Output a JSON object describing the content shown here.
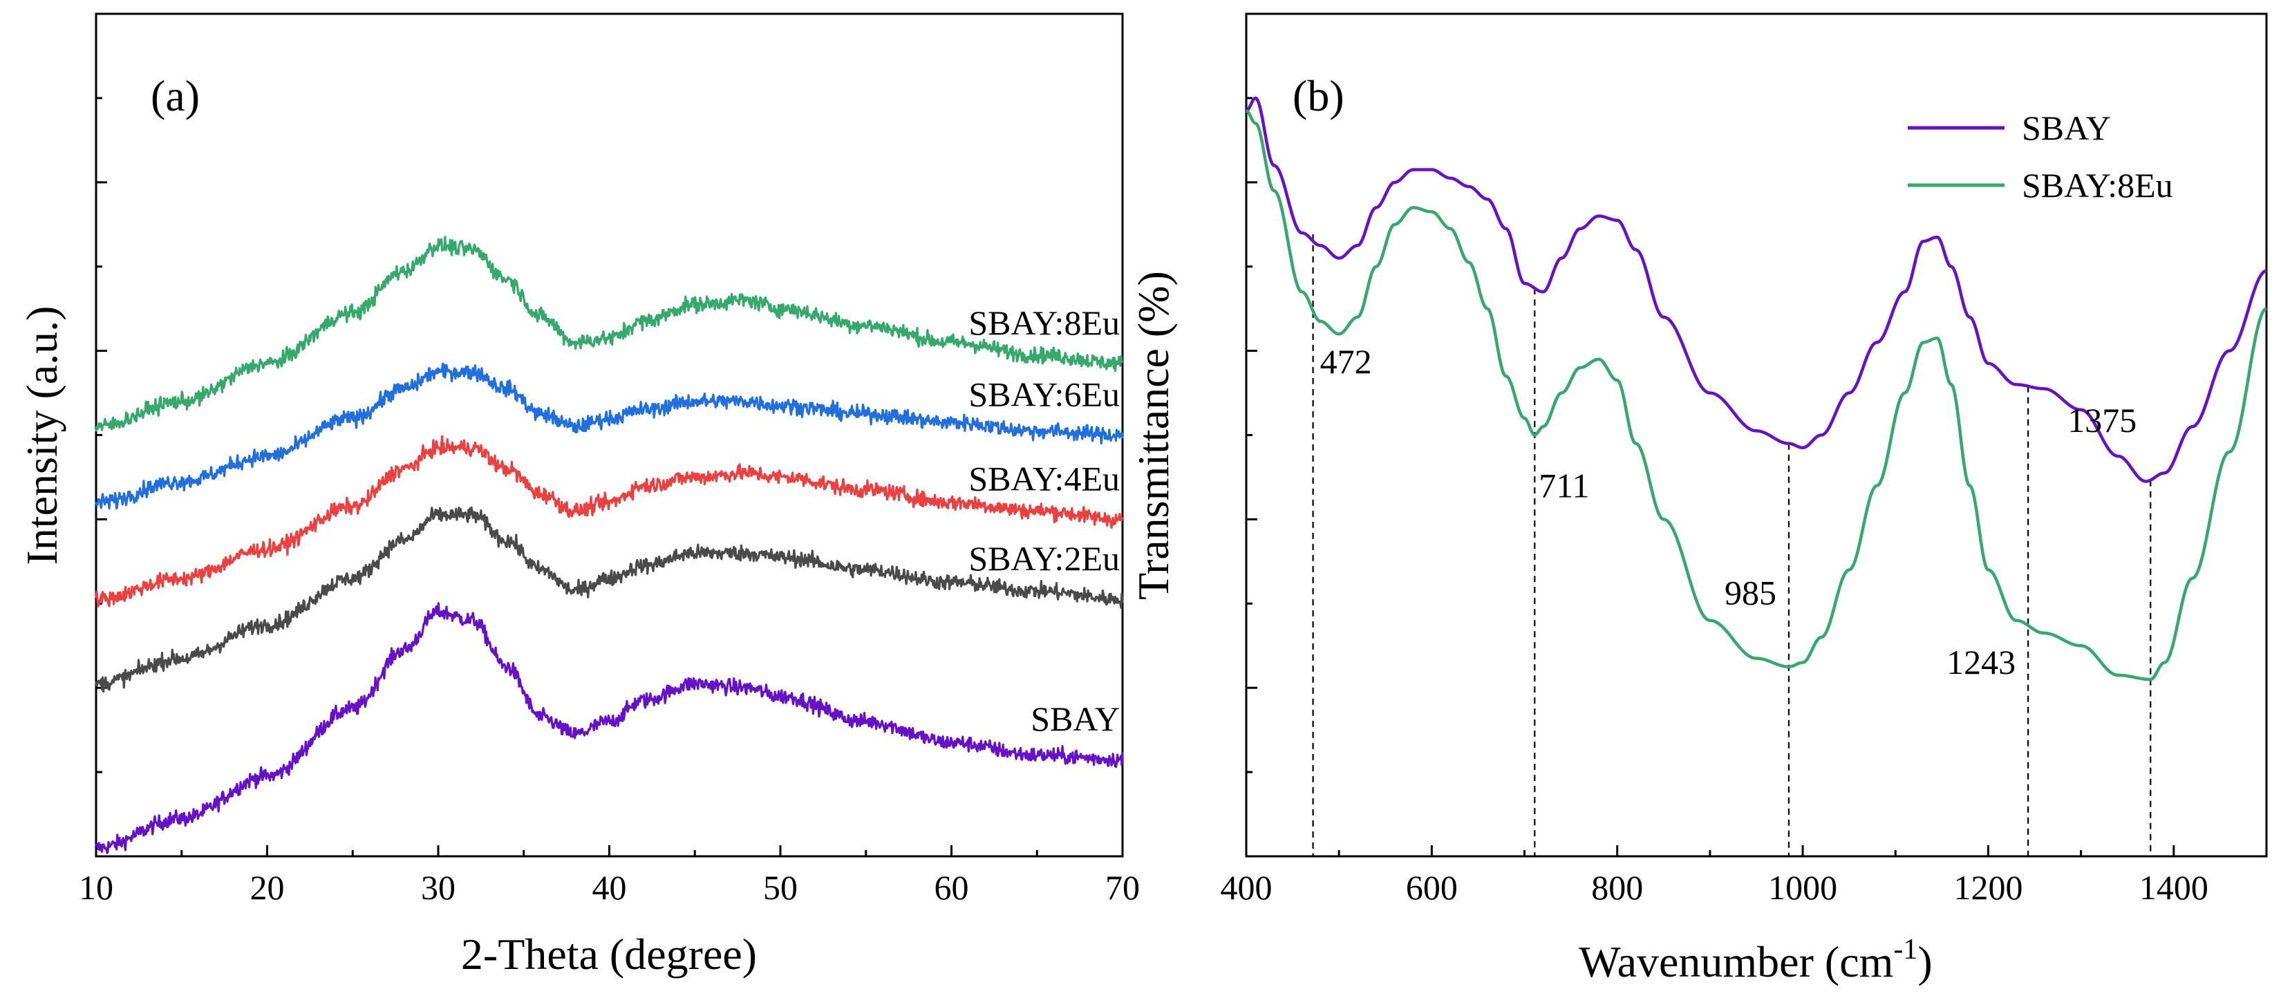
{
  "chart_data": [
    {
      "panel": "(a)",
      "type": "line",
      "title": "",
      "xlabel": "2-Theta (degree)",
      "ylabel": "Intensity (a.u.)",
      "xlim": [
        10,
        70
      ],
      "ylim": [
        0,
        10
      ],
      "x_ticks": [
        10,
        20,
        30,
        40,
        50,
        60,
        70
      ],
      "y_tick_labels_shown": false,
      "x_tick_labels": [
        "10",
        "20",
        "30",
        "40",
        "50",
        "60",
        "70"
      ],
      "grid": false,
      "colors": {
        "SBAY": "#6610cc",
        "SBAY:2Eu": "#4a4a4a",
        "SBAY:4Eu": "#ef3e3e",
        "SBAY:6Eu": "#1f6fe0",
        "SBAY:8Eu": "#33a96a"
      },
      "series": [
        {
          "name": "SBAY",
          "label": "SBAY",
          "x": [
            10,
            15,
            20,
            25,
            28,
            30,
            32,
            34,
            36,
            38,
            40,
            42,
            45,
            48,
            50,
            55,
            60,
            65,
            70
          ],
          "values": [
            0.1,
            0.45,
            0.95,
            1.75,
            2.45,
            2.9,
            2.8,
            2.25,
            1.65,
            1.45,
            1.6,
            1.85,
            2.05,
            2.0,
            1.9,
            1.6,
            1.35,
            1.2,
            1.15
          ]
        },
        {
          "name": "SBAY:2Eu",
          "label": "SBAY:2Eu",
          "x": [
            10,
            15,
            20,
            25,
            28,
            30,
            32,
            34,
            36,
            38,
            40,
            42,
            45,
            48,
            50,
            55,
            60,
            65,
            70
          ],
          "values": [
            2.05,
            2.35,
            2.75,
            3.3,
            3.75,
            4.05,
            4.05,
            3.75,
            3.4,
            3.15,
            3.3,
            3.45,
            3.6,
            3.6,
            3.55,
            3.4,
            3.25,
            3.15,
            3.05
          ]
        },
        {
          "name": "SBAY:4Eu",
          "label": "SBAY:4Eu",
          "x": [
            10,
            15,
            20,
            25,
            28,
            30,
            32,
            34,
            36,
            38,
            40,
            42,
            45,
            48,
            50,
            55,
            60,
            65,
            70
          ],
          "values": [
            3.05,
            3.3,
            3.65,
            4.15,
            4.6,
            4.85,
            4.85,
            4.6,
            4.3,
            4.1,
            4.2,
            4.4,
            4.5,
            4.55,
            4.5,
            4.35,
            4.2,
            4.1,
            4.0
          ]
        },
        {
          "name": "SBAY:6Eu",
          "label": "SBAY:6Eu",
          "x": [
            10,
            15,
            20,
            25,
            28,
            30,
            32,
            34,
            36,
            38,
            40,
            42,
            45,
            48,
            50,
            55,
            60,
            65,
            70
          ],
          "values": [
            4.2,
            4.45,
            4.75,
            5.2,
            5.55,
            5.75,
            5.75,
            5.55,
            5.25,
            5.1,
            5.2,
            5.3,
            5.4,
            5.4,
            5.35,
            5.25,
            5.15,
            5.05,
            5.0
          ]
        },
        {
          "name": "SBAY:8Eu",
          "label": "SBAY:8Eu",
          "x": [
            10,
            15,
            20,
            25,
            28,
            30,
            32,
            34,
            36,
            38,
            40,
            42,
            45,
            48,
            50,
            55,
            60,
            65,
            70
          ],
          "values": [
            5.1,
            5.4,
            5.85,
            6.45,
            6.95,
            7.25,
            7.2,
            6.85,
            6.4,
            6.1,
            6.15,
            6.35,
            6.55,
            6.6,
            6.5,
            6.3,
            6.1,
            5.95,
            5.85
          ]
        }
      ]
    },
    {
      "panel": "(b)",
      "type": "line",
      "title": "",
      "xlabel": "Wavenumber (cm",
      "xlabel_superscript": "-1",
      "xlabel_suffix": ")",
      "ylabel": "Transmittance (%)",
      "xlim": [
        400,
        1500
      ],
      "ylim": [
        0,
        100
      ],
      "x_ticks": [
        400,
        600,
        800,
        1000,
        1200,
        1400
      ],
      "x_tick_labels": [
        "400",
        "600",
        "800",
        "1000",
        "1200",
        "1400"
      ],
      "y_tick_labels_shown": false,
      "grid": false,
      "legend": {
        "position": "top-right",
        "entries": [
          "SBAY",
          "SBAY:8Eu"
        ]
      },
      "colors": {
        "SBAY": "#6610cc",
        "SBAY:8Eu": "#33a96a"
      },
      "series": [
        {
          "name": "SBAY",
          "x": [
            400,
            410,
            430,
            460,
            480,
            500,
            520,
            540,
            560,
            580,
            600,
            620,
            640,
            660,
            680,
            700,
            720,
            740,
            760,
            780,
            800,
            820,
            850,
            900,
            950,
            985,
            1000,
            1020,
            1050,
            1080,
            1110,
            1130,
            1145,
            1160,
            1180,
            1200,
            1230,
            1260,
            1300,
            1340,
            1370,
            1390,
            1420,
            1460,
            1500
          ],
          "values": [
            88.5,
            90,
            82,
            74,
            72.5,
            71,
            72.5,
            77,
            80,
            81.5,
            81.5,
            80.5,
            79.5,
            78,
            74.5,
            68,
            67,
            71,
            74.5,
            76,
            75.5,
            72,
            64,
            55,
            50.5,
            49,
            48.5,
            50,
            55,
            61,
            67,
            73,
            73.5,
            70,
            64,
            58.5,
            56,
            55.5,
            53,
            47.5,
            44.5,
            45.5,
            51,
            60,
            69.5
          ]
        },
        {
          "name": "SBAY:8Eu",
          "x": [
            400,
            410,
            430,
            460,
            480,
            500,
            520,
            540,
            560,
            580,
            600,
            620,
            640,
            660,
            680,
            700,
            711,
            720,
            740,
            760,
            780,
            800,
            820,
            850,
            900,
            950,
            985,
            1000,
            1020,
            1050,
            1080,
            1110,
            1130,
            1145,
            1160,
            1180,
            1200,
            1230,
            1260,
            1300,
            1340,
            1375,
            1390,
            1420,
            1460,
            1500
          ],
          "values": [
            88.5,
            87,
            79,
            67,
            63.5,
            62,
            64,
            70,
            75,
            77,
            76.5,
            74.5,
            70.5,
            65,
            57,
            52,
            50,
            51,
            55,
            58,
            59,
            56.5,
            49,
            40,
            28,
            23.5,
            22.5,
            23,
            26,
            34,
            44,
            55,
            61,
            61.5,
            56,
            44,
            34,
            28,
            26.5,
            25,
            21.5,
            21,
            23,
            33,
            48,
            65
          ]
        }
      ],
      "peak_markers": [
        {
          "x": 472,
          "label": "472"
        },
        {
          "x": 711,
          "label": "711"
        },
        {
          "x": 985,
          "label": "985"
        },
        {
          "x": 1243,
          "label": "1243"
        },
        {
          "x": 1375,
          "label": "1375"
        }
      ]
    }
  ]
}
